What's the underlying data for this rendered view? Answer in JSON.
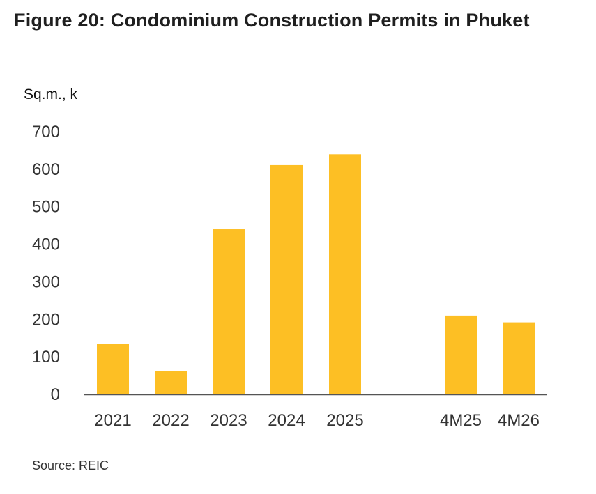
{
  "figure": {
    "title": "Figure 20: Condominium Construction Permits in Phuket",
    "unit_label": "Sq.m., k",
    "source": "Source: REIC"
  },
  "chart_data": {
    "type": "bar",
    "title": "Figure 20: Condominium Construction Permits in Phuket",
    "xlabel": "",
    "ylabel": "Sq.m., k",
    "categories": [
      "2021",
      "2022",
      "2023",
      "2024",
      "2025",
      "4M25",
      "4M26"
    ],
    "values": [
      135,
      62,
      440,
      611,
      640,
      210,
      192
    ],
    "ylim": [
      0,
      700
    ],
    "yticks": [
      0,
      100,
      200,
      300,
      400,
      500,
      600,
      700
    ],
    "grid": false,
    "legend": "none",
    "bar_color": "#FDBF24",
    "axis_color": "#555555"
  }
}
